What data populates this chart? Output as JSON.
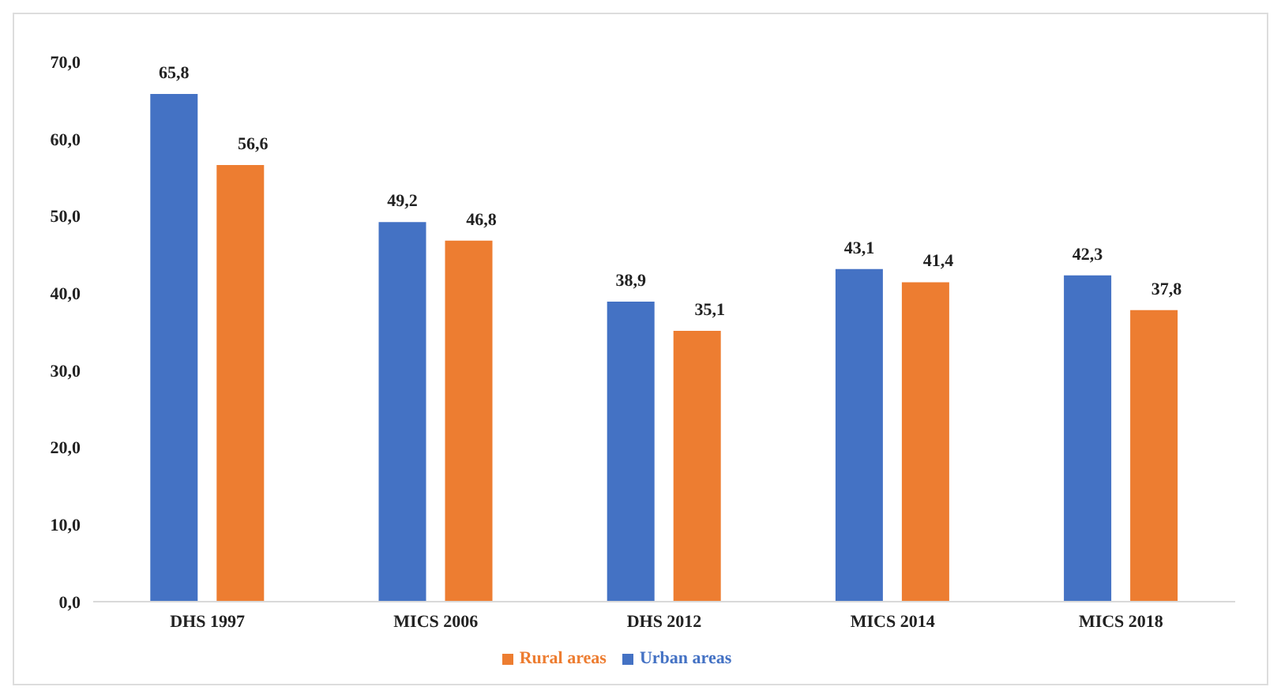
{
  "chart_data": {
    "type": "bar",
    "categories": [
      "DHS 1997",
      "MICS 2006",
      "DHS 2012",
      "MICS 2014",
      "MICS 2018"
    ],
    "series": [
      {
        "name": "Urban areas",
        "color": "#4472c4",
        "values": [
          65.8,
          49.2,
          38.9,
          43.1,
          42.3
        ],
        "value_labels": [
          "65,8",
          "49,2",
          "38,9",
          "43,1",
          "42,3"
        ]
      },
      {
        "name": "Rural areas",
        "color": "#ed7d31",
        "values": [
          56.6,
          46.8,
          35.1,
          41.4,
          37.8
        ],
        "value_labels": [
          "56,6",
          "46,8",
          "35,1",
          "41,4",
          "37,8"
        ]
      }
    ],
    "ylim": [
      0,
      70
    ],
    "yticks": [
      {
        "value": 0,
        "label": "0,0"
      },
      {
        "value": 10,
        "label": "10,0"
      },
      {
        "value": 20,
        "label": "20,0"
      },
      {
        "value": 30,
        "label": "30,0"
      },
      {
        "value": 40,
        "label": "40,0"
      },
      {
        "value": 50,
        "label": "50,0"
      },
      {
        "value": 60,
        "label": "60,0"
      },
      {
        "value": 70,
        "label": "70,0"
      }
    ],
    "grid": false,
    "legend": "bottom"
  }
}
